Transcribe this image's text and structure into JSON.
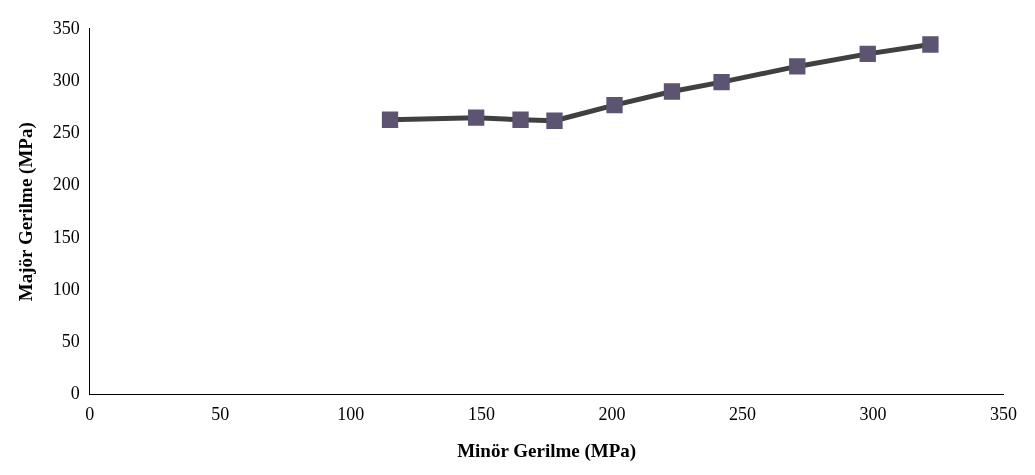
{
  "chart_data": {
    "type": "line",
    "xlabel": "Minör Gerilme (MPa)",
    "ylabel": "Majör Gerilme (MPa)",
    "xlim": [
      0,
      350
    ],
    "xticks": [
      0,
      50,
      100,
      150,
      200,
      250,
      300,
      350
    ],
    "ylim": [
      0,
      350
    ],
    "yticks": [
      0,
      50,
      100,
      150,
      200,
      250,
      300,
      350
    ],
    "grid": false,
    "legend": false,
    "marker": "square",
    "line_style": "solid",
    "series": [
      {
        "color": "#404040",
        "x": [
          115,
          148,
          165,
          178,
          201,
          223,
          242,
          271,
          298,
          322
        ],
        "values": [
          263,
          265,
          263,
          262,
          277,
          290,
          299,
          314,
          326,
          335
        ]
      }
    ]
  }
}
